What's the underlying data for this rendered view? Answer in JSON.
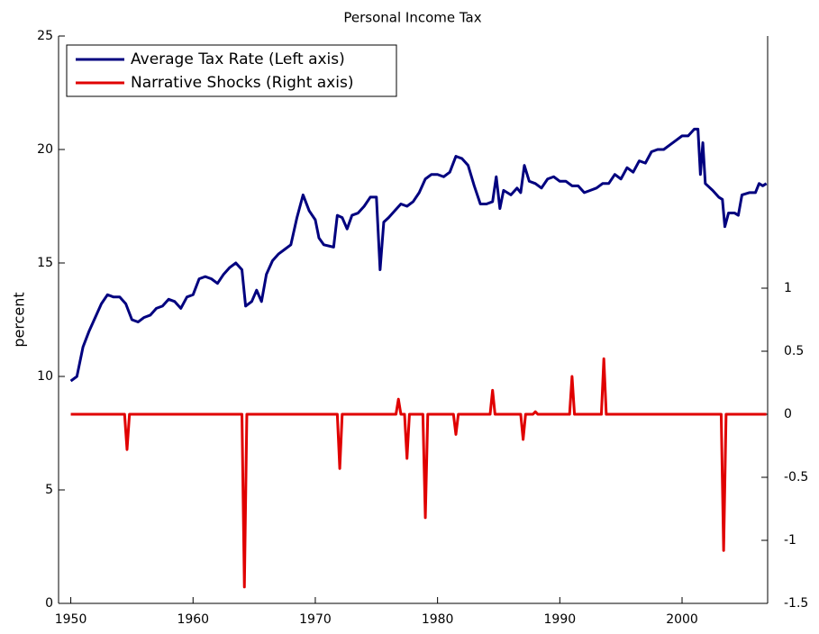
{
  "chart_data": {
    "type": "line",
    "title": "Personal Income Tax",
    "y_label": "percent",
    "xlim": [
      1949,
      2007
    ],
    "xticks": [
      1950,
      1960,
      1970,
      1980,
      1990,
      2000
    ],
    "ylim": [
      0,
      25
    ],
    "yticks": [
      0,
      5,
      10,
      15,
      20,
      25
    ],
    "y2lim": [
      -1.5,
      3
    ],
    "y2ticks": [
      -1.5,
      -1,
      -0.5,
      0,
      0.5,
      1
    ],
    "legend": "upper-left",
    "series": [
      {
        "name": "Average Tax Rate (Left axis)",
        "color": "#00007f",
        "x": [
          1950,
          1950.5,
          1951,
          1951.5,
          1952,
          1952.5,
          1953,
          1953.5,
          1954,
          1954.5,
          1955,
          1955.5,
          1956,
          1956.5,
          1957,
          1957.5,
          1958,
          1958.5,
          1959,
          1959.5,
          1960,
          1960.5,
          1961,
          1961.5,
          1962,
          1962.5,
          1963,
          1963.5,
          1964,
          1964.3,
          1964.8,
          1965.2,
          1965.6,
          1966,
          1966.5,
          1967,
          1967.5,
          1968,
          1968.5,
          1969,
          1969.5,
          1970,
          1970.3,
          1970.7,
          1971.5,
          1971.8,
          1972.2,
          1972.6,
          1973,
          1973.5,
          1974,
          1974.5,
          1975,
          1975.3,
          1975.6,
          1976,
          1976.5,
          1977,
          1977.5,
          1978,
          1978.5,
          1979,
          1979.5,
          1980,
          1980.5,
          1981,
          1981.5,
          1982,
          1982.5,
          1983,
          1983.5,
          1984,
          1984.5,
          1984.8,
          1985.1,
          1985.4,
          1986,
          1986.5,
          1986.8,
          1987.1,
          1987.5,
          1988,
          1988.5,
          1989,
          1989.5,
          1990,
          1990.5,
          1991,
          1991.5,
          1992,
          1992.5,
          1993,
          1993.5,
          1994,
          1994.5,
          1995,
          1995.5,
          1996,
          1996.5,
          1997,
          1997.5,
          1998,
          1998.5,
          1999,
          1999.5,
          2000,
          2000.5,
          2001,
          2001.3,
          2001.5,
          2001.7,
          2001.9,
          2002.5,
          2003,
          2003.3,
          2003.5,
          2003.8,
          2004.3,
          2004.6,
          2004.9,
          2005.5,
          2006,
          2006.3,
          2006.6,
          2006.9
        ],
        "values": [
          9.8,
          10.0,
          11.3,
          12.0,
          12.6,
          13.2,
          13.6,
          13.5,
          13.5,
          13.2,
          12.5,
          12.4,
          12.6,
          12.7,
          13.0,
          13.1,
          13.4,
          13.3,
          13.0,
          13.5,
          13.6,
          14.3,
          14.4,
          14.3,
          14.1,
          14.5,
          14.8,
          15.0,
          14.7,
          13.1,
          13.3,
          13.8,
          13.3,
          14.5,
          15.1,
          15.4,
          15.6,
          15.8,
          17.0,
          18.0,
          17.3,
          16.9,
          16.1,
          15.8,
          15.7,
          17.1,
          17.0,
          16.5,
          17.1,
          17.2,
          17.5,
          17.9,
          17.9,
          14.7,
          16.8,
          17.0,
          17.3,
          17.6,
          17.5,
          17.7,
          18.1,
          18.7,
          18.9,
          18.9,
          18.8,
          19.0,
          19.7,
          19.6,
          19.3,
          18.4,
          17.6,
          17.6,
          17.7,
          18.8,
          17.4,
          18.2,
          18.0,
          18.3,
          18.1,
          19.3,
          18.6,
          18.5,
          18.3,
          18.7,
          18.8,
          18.6,
          18.6,
          18.4,
          18.4,
          18.1,
          18.2,
          18.3,
          18.5,
          18.5,
          18.9,
          18.7,
          19.2,
          19.0,
          19.5,
          19.4,
          19.9,
          20.0,
          20.0,
          20.2,
          20.4,
          20.6,
          20.6,
          20.9,
          20.9,
          18.9,
          20.3,
          18.5,
          18.2,
          17.9,
          17.8,
          16.6,
          17.2,
          17.2,
          17.1,
          18.0,
          18.1,
          18.1,
          18.5,
          18.4,
          18.5
        ]
      },
      {
        "name": "Narrative Shocks (Right axis)",
        "color": "#e00000",
        "axis": "y2",
        "x": [
          1950,
          1954.4,
          1954.6,
          1954.8,
          1964.0,
          1964.2,
          1964.4,
          1971.8,
          1972.0,
          1972.2,
          1976.6,
          1976.8,
          1977.0,
          1977.3,
          1977.5,
          1977.7,
          1978.8,
          1979.0,
          1979.2,
          1981.3,
          1981.5,
          1981.7,
          1984.3,
          1984.5,
          1984.7,
          1986.8,
          1987.0,
          1987.2,
          1987.8,
          1988.0,
          1988.2,
          1990.8,
          1991.0,
          1991.2,
          1993.4,
          1993.6,
          1993.8,
          2003.2,
          2003.4,
          2003.6,
          2006.9
        ],
        "values": [
          0,
          0,
          -0.28,
          0,
          0,
          -1.37,
          0,
          0,
          -0.43,
          0,
          0,
          0.12,
          0,
          0,
          -0.35,
          0,
          0,
          -0.82,
          0,
          0,
          -0.16,
          0,
          0,
          0.19,
          0,
          0,
          -0.2,
          0,
          0,
          0.02,
          0,
          0,
          0.3,
          0,
          0,
          0.44,
          0,
          0,
          -1.08,
          0,
          0
        ]
      }
    ]
  }
}
